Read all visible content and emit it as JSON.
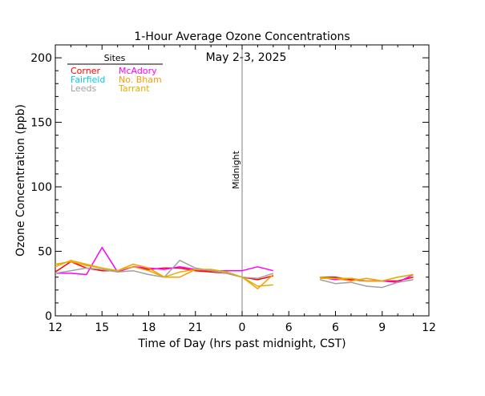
{
  "chart_data": {
    "type": "line",
    "title": "1-Hour Average Ozone Concentrations",
    "subtitle": "May 2-3, 2025",
    "xlabel": "Time of Day (hrs past midnight, CST)",
    "ylabel": "Ozone Concentration (ppb)",
    "xlim": [
      0,
      23
    ],
    "ylim": [
      0,
      210
    ],
    "x_ticks": [
      {
        "pos": 0,
        "label": "12"
      },
      {
        "pos": 3,
        "label": "15"
      },
      {
        "pos": 6,
        "label": "18"
      },
      {
        "pos": 9,
        "label": "21"
      },
      {
        "pos": 12,
        "label": "0"
      },
      {
        "pos": 15,
        "label": "6"
      },
      {
        "pos": 18,
        "label": "6"
      },
      {
        "pos": 21,
        "label": "9"
      },
      {
        "pos": 24,
        "label": "12"
      }
    ],
    "y_ticks": [
      0,
      50,
      100,
      150,
      200
    ],
    "midline": {
      "x": 12,
      "label": "Midnight"
    },
    "legend": {
      "title": "Sites",
      "placement": "top-left"
    },
    "series": [
      {
        "name": "Corner",
        "color": "#ff0000",
        "legend_col": 0,
        "legend_row": 0,
        "values": [
          34,
          42,
          37,
          35,
          35,
          38,
          36,
          37,
          37,
          35,
          34,
          33,
          30,
          28,
          31,
          null,
          null,
          30,
          30,
          28,
          27,
          27,
          27,
          30
        ]
      },
      {
        "name": "McAdory",
        "color": "#ff00ff",
        "legend_col": 1,
        "legend_row": 0,
        "values": [
          33,
          33,
          32,
          53,
          34,
          38,
          37,
          36,
          38,
          36,
          35,
          35,
          35,
          38,
          35,
          null,
          null,
          30,
          28,
          29,
          27,
          27,
          26,
          32
        ]
      },
      {
        "name": "Fairfield",
        "color": "#00c8ff",
        "legend_col": 0,
        "legend_row": 1,
        "values": [
          null,
          null,
          null,
          null,
          null,
          null,
          null,
          null,
          null,
          null,
          null,
          null,
          null,
          null,
          null,
          null,
          null,
          null,
          null,
          null,
          null,
          null,
          null,
          null
        ]
      },
      {
        "name": "No. Bham",
        "color": "#ff9900",
        "legend_col": 1,
        "legend_row": 1,
        "values": [
          40,
          42,
          39,
          37,
          35,
          40,
          37,
          30,
          30,
          36,
          36,
          34,
          30,
          21,
          32,
          null,
          null,
          29,
          29,
          27,
          29,
          27,
          30,
          32
        ]
      },
      {
        "name": "Leeds",
        "color": "#a0a0a0",
        "legend_col": 0,
        "legend_row": 2,
        "values": [
          33,
          35,
          37,
          36,
          34,
          35,
          32,
          30,
          43,
          37,
          35,
          33,
          30,
          29,
          33,
          null,
          null,
          28,
          25,
          26,
          23,
          22,
          26,
          28
        ]
      },
      {
        "name": "Tarrant",
        "color": "#e0b000",
        "legend_col": 1,
        "legend_row": 2,
        "values": [
          38,
          43,
          40,
          37,
          35,
          38,
          35,
          30,
          34,
          36,
          36,
          34,
          30,
          23,
          24,
          null,
          null,
          30,
          29,
          29,
          27,
          27,
          30,
          32
        ]
      }
    ]
  }
}
